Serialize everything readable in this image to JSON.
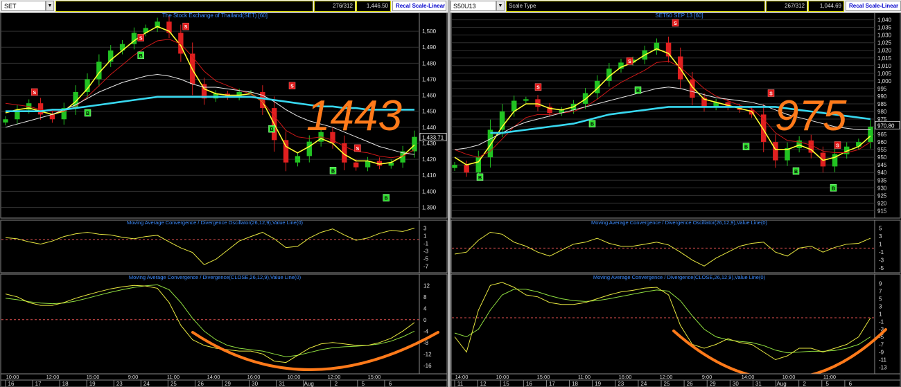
{
  "left": {
    "symbol": "SET",
    "bars": "276/312",
    "price_box": "1,446.50",
    "scale_label": "",
    "recal": "Recal Scale-Linear",
    "title": "The Stock Exchange of Thailand(SET) [60]",
    "big_number": "1443",
    "last_price": "1,433.71",
    "macd_title": "Moving Average Convergence / Divergence Oscillator(26,12,9),Value Line(0)",
    "macd2_title": "Moving Average Convergence / Divergence(CLOSE,26,12,9),Value Line(0)",
    "price_ticks": [
      "1,500",
      "1,490",
      "1,480",
      "1,470",
      "1,460",
      "1,450",
      "1,440",
      "1,430",
      "1,420",
      "1,410",
      "1,400",
      "1,390"
    ],
    "osc_ticks": [
      "3",
      "1",
      "-1",
      "-3",
      "-5",
      "-7"
    ],
    "macd_ticks": [
      "12",
      "8",
      "4",
      "0",
      "-4",
      "-8",
      "-12",
      "-16"
    ],
    "time_labels": [
      "10:00",
      "12:00",
      "15:00",
      "9:00",
      "11:00",
      "14:00",
      "16:00",
      "10:00",
      "12:00",
      "15:00"
    ],
    "date_labels": [
      "16",
      "17",
      "18",
      "19",
      "23",
      "24",
      "25",
      "26",
      "29",
      "30",
      "31",
      "Aug",
      "2",
      "5",
      "6"
    ],
    "signals": [
      {
        "t": "S",
        "x": 0.07,
        "y": 1462
      },
      {
        "t": "S",
        "x": 0.33,
        "y": 1496
      },
      {
        "t": "S",
        "x": 0.44,
        "y": 1503
      },
      {
        "t": "S",
        "x": 0.7,
        "y": 1466
      },
      {
        "t": "S",
        "x": 0.86,
        "y": 1427
      },
      {
        "t": "B",
        "x": 0.2,
        "y": 1449
      },
      {
        "t": "B",
        "x": 0.33,
        "y": 1485
      },
      {
        "t": "B",
        "x": 0.65,
        "y": 1439
      },
      {
        "t": "B",
        "x": 0.8,
        "y": 1413
      },
      {
        "t": "B",
        "x": 0.93,
        "y": 1396
      }
    ]
  },
  "right": {
    "symbol": "S50U13",
    "bars": "267/312",
    "price_box": "1,044.69",
    "scale_label": "Scale Type",
    "recal": "Recal Scale-Linear",
    "title": "SET50 SEP 13 [60]",
    "big_number": "975",
    "last_price": "970.80",
    "macd_title": "Moving Average Convergence / Divergence Oscillator(26,12,9),Value Line(0)",
    "macd2_title": "Moving Average Convergence / Divergence(CLOSE,26,12,9),Value Line(0)",
    "price_ticks": [
      "1,040",
      "1,035",
      "1,030",
      "1,025",
      "1,020",
      "1,015",
      "1,010",
      "1,005",
      "1,000",
      "995",
      "990",
      "985",
      "980",
      "975",
      "970",
      "965",
      "960",
      "955",
      "950",
      "945",
      "940",
      "935",
      "930",
      "925",
      "920",
      "915"
    ],
    "osc_ticks": [
      "5",
      "3",
      "1",
      "-1",
      "-3",
      "-5"
    ],
    "macd_ticks": [
      "9",
      "7",
      "5",
      "3",
      "1",
      "-1",
      "-3",
      "-5",
      "-7",
      "-9",
      "-11",
      "-13"
    ],
    "time_labels": [
      "14:00",
      "10:00",
      "15:00",
      "11:00",
      "16:00",
      "12:00",
      "9:00",
      "14:00",
      "10:00",
      "11:00"
    ],
    "date_labels": [
      "11",
      "12",
      "15",
      "16",
      "17",
      "18",
      "19",
      "23",
      "24",
      "25",
      "26",
      "29",
      "30",
      "31",
      "Aug",
      "2",
      "5",
      "6"
    ],
    "signals": [
      {
        "t": "S",
        "x": 0.2,
        "y": 996
      },
      {
        "t": "S",
        "x": 0.42,
        "y": 1013
      },
      {
        "t": "S",
        "x": 0.53,
        "y": 1038
      },
      {
        "t": "S",
        "x": 0.76,
        "y": 992
      },
      {
        "t": "S",
        "x": 0.92,
        "y": 958
      },
      {
        "t": "B",
        "x": 0.06,
        "y": 937
      },
      {
        "t": "B",
        "x": 0.33,
        "y": 972
      },
      {
        "t": "B",
        "x": 0.44,
        "y": 994
      },
      {
        "t": "B",
        "x": 0.7,
        "y": 957
      },
      {
        "t": "B",
        "x": 0.82,
        "y": 941
      },
      {
        "t": "B",
        "x": 0.91,
        "y": 930
      }
    ]
  },
  "chart_data": [
    {
      "type": "line",
      "title": "The Stock Exchange of Thailand(SET) [60]",
      "ylim": [
        1385,
        1510
      ],
      "series": [
        {
          "name": "close",
          "values": [
            1445,
            1451,
            1455,
            1448,
            1445,
            1452,
            1462,
            1470,
            1481,
            1488,
            1492,
            1499,
            1502,
            1506,
            1499,
            1486,
            1467,
            1458,
            1461,
            1459,
            1462,
            1462,
            1452,
            1432,
            1418,
            1422,
            1431,
            1437,
            1430,
            1418,
            1415,
            1419,
            1416,
            1418,
            1425,
            1434
          ]
        },
        {
          "name": "ma-yellow",
          "values": [
            1449,
            1451,
            1452,
            1450,
            1448,
            1450,
            1456,
            1464,
            1474,
            1482,
            1488,
            1494,
            1499,
            1503,
            1500,
            1491,
            1476,
            1464,
            1461,
            1460,
            1460,
            1461,
            1456,
            1442,
            1428,
            1424,
            1428,
            1433,
            1430,
            1423,
            1419,
            1419,
            1417,
            1418,
            1422,
            1429
          ]
        },
        {
          "name": "ma-red",
          "values": [
            1455,
            1454,
            1453,
            1451,
            1450,
            1450,
            1453,
            1459,
            1466,
            1473,
            1479,
            1485,
            1490,
            1494,
            1495,
            1492,
            1484,
            1475,
            1469,
            1466,
            1463,
            1461,
            1456,
            1447,
            1438,
            1434,
            1433,
            1434,
            1432,
            1428,
            1425,
            1424,
            1422,
            1421,
            1422,
            1426
          ]
        },
        {
          "name": "ma-white",
          "values": [
            1440,
            1442,
            1444,
            1446,
            1448,
            1451,
            1454,
            1458,
            1462,
            1465,
            1468,
            1470,
            1472,
            1473,
            1472,
            1470,
            1467,
            1465,
            1465,
            1464,
            1463,
            1462,
            1460,
            1456,
            1451,
            1447,
            1444,
            1442,
            1440,
            1437,
            1434,
            1431,
            1428,
            1426,
            1424,
            1423
          ]
        },
        {
          "name": "ma-cyan",
          "values": [
            1450,
            1450,
            1450,
            1450,
            1451,
            1451,
            1452,
            1453,
            1454,
            1455,
            1456,
            1457,
            1458,
            1459,
            1459,
            1459,
            1459,
            1459,
            1459,
            1459,
            1459,
            1459,
            1458,
            1457,
            1456,
            1455,
            1454,
            1453,
            1453,
            1452,
            1452,
            1451,
            1451,
            1451,
            1451,
            1451
          ]
        }
      ],
      "oscillator": [
        0.5,
        0.2,
        -0.6,
        -1.2,
        -0.4,
        0.8,
        1.5,
        1.9,
        1.4,
        1.2,
        0.6,
        0.2,
        0.8,
        1.1,
        -0.6,
        -2.2,
        -3.4,
        -6.6,
        -5.2,
        -2.8,
        -0.4,
        0.8,
        1.9,
        0.2,
        -2.1,
        -1.8,
        0.4,
        1.9,
        2.8,
        1.2,
        -0.2,
        0.4,
        1.6,
        2.4,
        2.1,
        3.0
      ],
      "macd": [
        9.0,
        8.0,
        6.0,
        5.0,
        5.0,
        6.0,
        7.5,
        8.7,
        9.8,
        10.8,
        11.5,
        12.0,
        11.8,
        11.0,
        6.0,
        -2.0,
        -7.0,
        -9.0,
        -10.0,
        -10.5,
        -11.0,
        -11.0,
        -12.0,
        -14.5,
        -15.0,
        -12.5,
        -10.0,
        -8.5,
        -8.0,
        -8.5,
        -9.0,
        -9.0,
        -8.0,
        -6.5,
        -4.0,
        -1.0
      ],
      "macd_signal": [
        7.5,
        7.0,
        6.3,
        5.8,
        5.6,
        5.8,
        6.5,
        7.5,
        8.6,
        9.6,
        10.5,
        11.3,
        11.9,
        12.2,
        10.5,
        6.0,
        0.5,
        -4.0,
        -7.0,
        -9.0,
        -10.0,
        -10.5,
        -11.0,
        -12.0,
        -13.0,
        -12.5,
        -11.5,
        -10.5,
        -9.8,
        -9.5,
        -9.3,
        -9.0,
        -8.5,
        -7.5,
        -6.0,
        -4.0
      ],
      "osc_ylim": [
        -8,
        4
      ],
      "macd_ylim": [
        -18,
        14
      ]
    },
    {
      "type": "line",
      "title": "SET50 SEP 13 [60]",
      "ylim": [
        912,
        1043
      ],
      "series": [
        {
          "name": "close",
          "values": [
            945,
            940,
            950,
            968,
            980,
            987,
            988,
            983,
            979,
            981,
            985,
            992,
            1000,
            1008,
            1012,
            1014,
            1020,
            1025,
            1016,
            1001,
            989,
            983,
            986,
            983,
            981,
            978,
            960,
            948,
            956,
            961,
            953,
            944,
            952,
            957,
            960,
            970
          ]
        },
        {
          "name": "ma-yellow",
          "values": [
            950,
            945,
            947,
            958,
            970,
            980,
            985,
            985,
            982,
            981,
            983,
            988,
            995,
            1003,
            1009,
            1012,
            1017,
            1021,
            1018,
            1008,
            996,
            988,
            986,
            984,
            982,
            980,
            968,
            955,
            955,
            958,
            955,
            948,
            950,
            954,
            957,
            964
          ]
        },
        {
          "name": "ma-red",
          "values": [
            955,
            952,
            950,
            954,
            962,
            970,
            976,
            978,
            978,
            979,
            980,
            983,
            988,
            994,
            999,
            1003,
            1007,
            1012,
            1013,
            1009,
            1002,
            995,
            990,
            987,
            984,
            982,
            975,
            966,
            961,
            960,
            958,
            954,
            953,
            953,
            955,
            960
          ]
        },
        {
          "name": "ma-white",
          "values": [
            955,
            956,
            958,
            962,
            966,
            970,
            973,
            975,
            977,
            979,
            981,
            983,
            985,
            987,
            989,
            991,
            993,
            995,
            996,
            995,
            993,
            991,
            989,
            988,
            987,
            986,
            984,
            981,
            978,
            976,
            974,
            972,
            970,
            969,
            968,
            968
          ]
        },
        {
          "name": "ma-cyan",
          "values": [
            null,
            null,
            null,
            966,
            966,
            967,
            968,
            969,
            970,
            971,
            972,
            974,
            976,
            978,
            979,
            980,
            981,
            982,
            983,
            983,
            983,
            983,
            983,
            983,
            983,
            983,
            983,
            983,
            982,
            981,
            980,
            979,
            978,
            977,
            976,
            975
          ]
        }
      ],
      "oscillator": [
        -1.5,
        -1.0,
        2.0,
        4.0,
        3.5,
        1.5,
        0.5,
        -1.0,
        -2.0,
        -0.5,
        1.0,
        1.5,
        2.5,
        1.2,
        0.5,
        0.5,
        1.0,
        1.5,
        0.8,
        -1.0,
        -3.0,
        -4.5,
        -2.5,
        -1.0,
        0.5,
        1.2,
        1.5,
        -1.0,
        -2.0,
        0.0,
        0.5,
        -1.0,
        0.2,
        1.0,
        1.2,
        2.5
      ],
      "macd": [
        -5.0,
        -9.0,
        2.0,
        8.5,
        9.3,
        8.0,
        6.0,
        5.5,
        4.0,
        3.5,
        3.5,
        4.0,
        5.0,
        6.0,
        6.8,
        7.2,
        7.8,
        8.0,
        6.0,
        -2.0,
        -7.0,
        -8.0,
        -7.0,
        -5.5,
        -6.5,
        -7.0,
        -9.0,
        -11.0,
        -10.0,
        -8.0,
        -8.0,
        -9.0,
        -8.0,
        -7.0,
        -5.0,
        0.0
      ],
      "macd_signal": [
        -4.0,
        -5.0,
        -3.0,
        2.0,
        6.0,
        7.5,
        7.5,
        6.8,
        5.8,
        5.0,
        4.5,
        4.3,
        4.5,
        5.0,
        5.6,
        6.2,
        6.8,
        7.3,
        7.0,
        4.5,
        0.5,
        -3.0,
        -5.0,
        -5.8,
        -6.2,
        -6.5,
        -7.3,
        -8.5,
        -9.2,
        -9.0,
        -8.8,
        -8.8,
        -8.6,
        -8.0,
        -7.0,
        -5.0
      ],
      "osc_ylim": [
        -5.5,
        6
      ],
      "macd_ylim": [
        -14,
        10
      ]
    }
  ]
}
